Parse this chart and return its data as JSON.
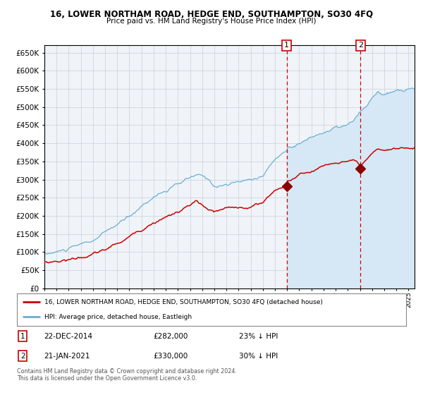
{
  "title": "16, LOWER NORTHAM ROAD, HEDGE END, SOUTHAMPTON, SO30 4FQ",
  "subtitle": "Price paid vs. HM Land Registry's House Price Index (HPI)",
  "hpi_label": "HPI: Average price, detached house, Eastleigh",
  "price_label": "16, LOWER NORTHAM ROAD, HEDGE END, SOUTHAMPTON, SO30 4FQ (detached house)",
  "annotation1_date": "22-DEC-2014",
  "annotation1_price": 282000,
  "annotation1_hpi": "23% ↓ HPI",
  "annotation1_year": 2014.97,
  "annotation2_date": "21-JAN-2021",
  "annotation2_price": 330000,
  "annotation2_hpi": "30% ↓ HPI",
  "annotation2_year": 2021.05,
  "copyright": "Contains HM Land Registry data © Crown copyright and database right 2024.\nThis data is licensed under the Open Government Licence v3.0.",
  "hpi_color": "#6baed6",
  "hpi_fill_color": "#d6e8f5",
  "price_color": "#cc0000",
  "marker_color": "#8b0000",
  "dashed_line_color": "#cc0000",
  "plot_bg": "#f0f4f8",
  "grid_color": "#c8d0dc",
  "ylim_max": 670000,
  "xlim_start": 1995,
  "xlim_end": 2025.5
}
